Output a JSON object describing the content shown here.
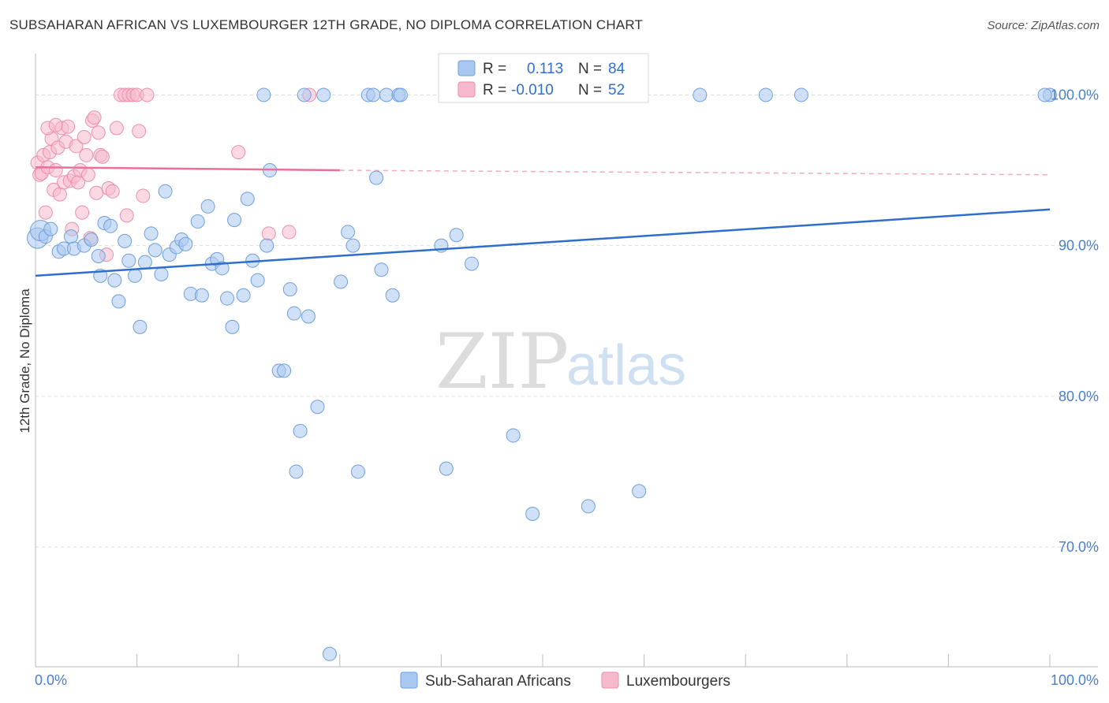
{
  "header": {
    "title": "SUBSAHARAN AFRICAN VS LUXEMBOURGER 12TH GRADE, NO DIPLOMA CORRELATION CHART",
    "source": "Source: ZipAtlas.com"
  },
  "watermark": {
    "zip": "ZIP",
    "atlas": "atlas"
  },
  "legend_box": {
    "row1": {
      "r_label": "R =",
      "r_value": "0.113",
      "n_label": "N =",
      "n_value": "84"
    },
    "row2": {
      "r_label": "R =",
      "r_value": "-0.010",
      "n_label": "N =",
      "n_value": "52"
    }
  },
  "bottom_legend": {
    "series1": "Sub-Saharan Africans",
    "series2": "Luxembourgers"
  },
  "colors": {
    "blue_fill": "#a9c8f0",
    "blue_stroke": "#6f9fdc",
    "blue_line": "#2f6fcc",
    "pink_fill": "#f6b9cc",
    "pink_stroke": "#eb8fae",
    "pink_line": "#e8719a",
    "grid": "#dddddd",
    "tick_text": "#4a7fc9"
  },
  "chart_data": {
    "type": "scatter",
    "title": "SUBSAHARAN AFRICAN VS LUXEMBOURGER 12TH GRADE, NO DIPLOMA CORRELATION CHART",
    "xlabel": "",
    "ylabel": "12th Grade, No Diploma",
    "xlim": [
      0,
      100
    ],
    "ylim": [
      62,
      101
    ],
    "x_tick_labels": [
      "0.0%",
      "100.0%"
    ],
    "y_tick_labels": [
      "70.0%",
      "80.0%",
      "90.0%",
      "100.0%"
    ],
    "y_ticks": [
      70,
      80,
      90,
      100
    ],
    "grid": true,
    "legend_position": "top-center",
    "series": [
      {
        "name": "Sub-Saharan Africans",
        "R": 0.113,
        "N": 84,
        "trend": {
          "x": [
            0,
            100
          ],
          "y": [
            88.0,
            92.4
          ]
        },
        "points": [
          [
            0.2,
            90.5
          ],
          [
            0.5,
            91.0
          ],
          [
            1.0,
            90.6
          ],
          [
            1.5,
            91.1
          ],
          [
            2.3,
            89.6
          ],
          [
            2.8,
            89.8
          ],
          [
            3.5,
            90.6
          ],
          [
            3.8,
            89.8
          ],
          [
            4.8,
            90.0
          ],
          [
            5.5,
            90.4
          ],
          [
            6.2,
            89.3
          ],
          [
            6.4,
            88.0
          ],
          [
            6.8,
            91.5
          ],
          [
            7.4,
            91.3
          ],
          [
            7.8,
            87.7
          ],
          [
            8.2,
            86.3
          ],
          [
            8.8,
            90.3
          ],
          [
            9.2,
            89.0
          ],
          [
            9.8,
            88.0
          ],
          [
            10.3,
            84.6
          ],
          [
            10.8,
            88.9
          ],
          [
            11.4,
            90.8
          ],
          [
            11.8,
            89.7
          ],
          [
            12.4,
            88.1
          ],
          [
            12.8,
            93.6
          ],
          [
            13.2,
            89.4
          ],
          [
            13.9,
            89.9
          ],
          [
            14.4,
            90.4
          ],
          [
            14.8,
            90.1
          ],
          [
            15.3,
            86.8
          ],
          [
            16.0,
            91.6
          ],
          [
            16.4,
            86.7
          ],
          [
            17.0,
            92.6
          ],
          [
            17.4,
            88.8
          ],
          [
            17.9,
            89.1
          ],
          [
            18.4,
            88.5
          ],
          [
            18.9,
            86.5
          ],
          [
            19.4,
            84.6
          ],
          [
            19.6,
            91.7
          ],
          [
            20.5,
            86.7
          ],
          [
            20.9,
            93.1
          ],
          [
            21.4,
            89.0
          ],
          [
            21.9,
            87.7
          ],
          [
            22.5,
            100.0
          ],
          [
            22.8,
            90.0
          ],
          [
            23.1,
            95.0
          ],
          [
            24.0,
            81.7
          ],
          [
            24.5,
            81.7
          ],
          [
            25.1,
            87.1
          ],
          [
            25.5,
            85.5
          ],
          [
            25.7,
            75.0
          ],
          [
            26.1,
            77.7
          ],
          [
            26.5,
            100.0
          ],
          [
            26.9,
            85.3
          ],
          [
            27.8,
            79.3
          ],
          [
            28.4,
            100.0
          ],
          [
            29.0,
            62.9
          ],
          [
            30.1,
            87.6
          ],
          [
            30.8,
            90.9
          ],
          [
            31.3,
            90.0
          ],
          [
            31.8,
            75.0
          ],
          [
            32.8,
            100.0
          ],
          [
            33.3,
            100.0
          ],
          [
            33.6,
            94.5
          ],
          [
            34.1,
            88.4
          ],
          [
            34.6,
            100.0
          ],
          [
            35.2,
            86.7
          ],
          [
            35.8,
            100.0
          ],
          [
            36.0,
            100.0
          ],
          [
            40.0,
            90.0
          ],
          [
            40.5,
            75.2
          ],
          [
            41.5,
            90.7
          ],
          [
            43.0,
            88.8
          ],
          [
            47.0,
            100.0
          ],
          [
            47.1,
            77.4
          ],
          [
            49.0,
            72.2
          ],
          [
            54.5,
            72.7
          ],
          [
            59.0,
            100.0
          ],
          [
            59.5,
            73.7
          ],
          [
            65.5,
            100.0
          ],
          [
            72.0,
            100.0
          ],
          [
            75.5,
            100.0
          ],
          [
            100.0,
            100.0
          ],
          [
            99.5,
            100.0
          ]
        ]
      },
      {
        "name": "Luxembourgers",
        "R": -0.01,
        "N": 52,
        "trend": {
          "x": [
            0,
            30
          ],
          "y": [
            95.2,
            95.0
          ],
          "dashed_to": [
            100,
            94.7
          ]
        },
        "points": [
          [
            0.2,
            95.5
          ],
          [
            0.4,
            94.7
          ],
          [
            0.6,
            94.8
          ],
          [
            0.8,
            96.0
          ],
          [
            1.0,
            92.2
          ],
          [
            1.2,
            95.2
          ],
          [
            1.4,
            96.2
          ],
          [
            1.6,
            97.1
          ],
          [
            1.8,
            93.7
          ],
          [
            2.0,
            95.0
          ],
          [
            2.2,
            96.5
          ],
          [
            2.4,
            93.4
          ],
          [
            2.6,
            97.8
          ],
          [
            2.8,
            94.2
          ],
          [
            3.0,
            96.9
          ],
          [
            3.2,
            97.9
          ],
          [
            3.4,
            94.3
          ],
          [
            3.6,
            91.1
          ],
          [
            3.8,
            94.6
          ],
          [
            4.0,
            96.6
          ],
          [
            4.2,
            94.2
          ],
          [
            4.4,
            95.0
          ],
          [
            4.6,
            92.2
          ],
          [
            4.8,
            97.2
          ],
          [
            5.0,
            96.0
          ],
          [
            5.2,
            94.7
          ],
          [
            5.4,
            90.5
          ],
          [
            5.6,
            98.3
          ],
          [
            5.8,
            98.5
          ],
          [
            6.0,
            93.5
          ],
          [
            6.2,
            97.5
          ],
          [
            6.4,
            96.0
          ],
          [
            6.6,
            95.9
          ],
          [
            7.0,
            89.4
          ],
          [
            7.2,
            93.8
          ],
          [
            7.6,
            93.6
          ],
          [
            8.0,
            97.8
          ],
          [
            8.4,
            100.0
          ],
          [
            8.8,
            100.0
          ],
          [
            9.0,
            92.0
          ],
          [
            9.2,
            100.0
          ],
          [
            9.6,
            100.0
          ],
          [
            10.0,
            100.0
          ],
          [
            10.2,
            97.6
          ],
          [
            10.6,
            93.3
          ],
          [
            11.0,
            100.0
          ],
          [
            1.2,
            97.8
          ],
          [
            2.0,
            98.0
          ],
          [
            20.0,
            96.2
          ],
          [
            23.0,
            90.8
          ],
          [
            25.0,
            90.9
          ],
          [
            27.0,
            100.0
          ]
        ]
      }
    ]
  }
}
